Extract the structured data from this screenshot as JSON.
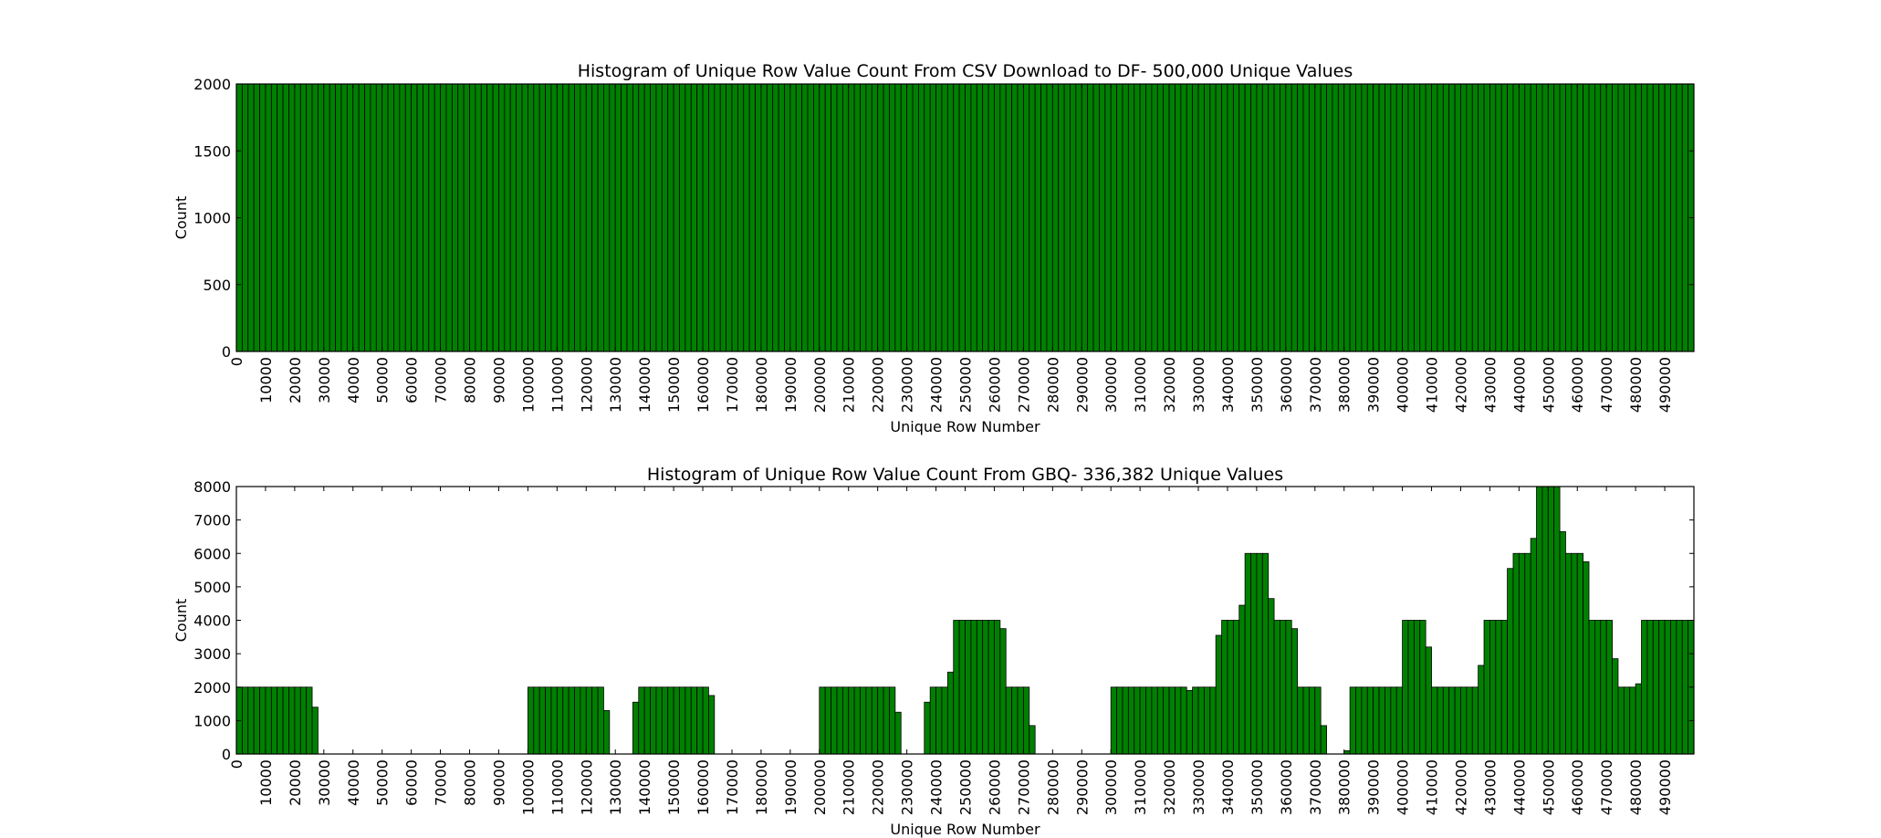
{
  "figure": {
    "background": "#ffffff"
  },
  "chart_data": [
    {
      "type": "bar",
      "title": "Histogram of Unique Row Value Count From CSV Download to DF- 500,000 Unique Values",
      "xlabel": "Unique Row Number",
      "ylabel": "Count",
      "xlim": [
        0,
        500000
      ],
      "ylim": [
        0,
        2000
      ],
      "yticks": [
        0,
        500,
        1000,
        1500,
        2000
      ],
      "xticks": [
        0,
        10000,
        20000,
        30000,
        40000,
        50000,
        60000,
        70000,
        80000,
        90000,
        100000,
        110000,
        120000,
        130000,
        140000,
        150000,
        160000,
        170000,
        180000,
        190000,
        200000,
        210000,
        220000,
        230000,
        240000,
        250000,
        260000,
        270000,
        280000,
        290000,
        300000,
        310000,
        320000,
        330000,
        340000,
        350000,
        360000,
        370000,
        380000,
        390000,
        400000,
        410000,
        420000,
        430000,
        440000,
        450000,
        460000,
        470000,
        480000,
        490000
      ],
      "bin_width": 2000,
      "bins": [
        {
          "start": 0,
          "end": 500000,
          "value": 2000
        }
      ],
      "color": "#008000",
      "edge_color": "#000000",
      "grid": false
    },
    {
      "type": "bar",
      "title": "Histogram of Unique Row Value Count From GBQ- 336,382 Unique Values",
      "xlabel": "Unique Row Number",
      "ylabel": "Count",
      "xlim": [
        0,
        500000
      ],
      "ylim": [
        0,
        8000
      ],
      "yticks": [
        0,
        1000,
        2000,
        3000,
        4000,
        5000,
        6000,
        7000,
        8000
      ],
      "xticks": [
        0,
        10000,
        20000,
        30000,
        40000,
        50000,
        60000,
        70000,
        80000,
        90000,
        100000,
        110000,
        120000,
        130000,
        140000,
        150000,
        160000,
        170000,
        180000,
        190000,
        200000,
        210000,
        220000,
        230000,
        240000,
        250000,
        260000,
        270000,
        280000,
        290000,
        300000,
        310000,
        320000,
        330000,
        340000,
        350000,
        360000,
        370000,
        380000,
        390000,
        400000,
        410000,
        420000,
        430000,
        440000,
        450000,
        460000,
        470000,
        480000,
        490000
      ],
      "bin_width": 2000,
      "bins": [
        {
          "start": 0,
          "end": 26000,
          "value": 2000
        },
        {
          "start": 26000,
          "end": 28000,
          "value": 1400
        },
        {
          "start": 28000,
          "end": 100000,
          "value": 0
        },
        {
          "start": 100000,
          "end": 126000,
          "value": 2000
        },
        {
          "start": 126000,
          "end": 128000,
          "value": 1300
        },
        {
          "start": 128000,
          "end": 136000,
          "value": 0
        },
        {
          "start": 136000,
          "end": 138000,
          "value": 1550
        },
        {
          "start": 138000,
          "end": 162000,
          "value": 2000
        },
        {
          "start": 162000,
          "end": 164000,
          "value": 1750
        },
        {
          "start": 164000,
          "end": 200000,
          "value": 0
        },
        {
          "start": 200000,
          "end": 226000,
          "value": 2000
        },
        {
          "start": 226000,
          "end": 228000,
          "value": 1250
        },
        {
          "start": 228000,
          "end": 236000,
          "value": 0
        },
        {
          "start": 236000,
          "end": 238000,
          "value": 1550
        },
        {
          "start": 238000,
          "end": 244000,
          "value": 2000
        },
        {
          "start": 244000,
          "end": 246000,
          "value": 2450
        },
        {
          "start": 246000,
          "end": 262000,
          "value": 4000
        },
        {
          "start": 262000,
          "end": 264000,
          "value": 3750
        },
        {
          "start": 264000,
          "end": 272000,
          "value": 2000
        },
        {
          "start": 272000,
          "end": 274000,
          "value": 850
        },
        {
          "start": 274000,
          "end": 300000,
          "value": 0
        },
        {
          "start": 300000,
          "end": 326000,
          "value": 2000
        },
        {
          "start": 326000,
          "end": 328000,
          "value": 1900
        },
        {
          "start": 328000,
          "end": 336000,
          "value": 2000
        },
        {
          "start": 336000,
          "end": 338000,
          "value": 3550
        },
        {
          "start": 338000,
          "end": 344000,
          "value": 4000
        },
        {
          "start": 344000,
          "end": 346000,
          "value": 4450
        },
        {
          "start": 346000,
          "end": 354000,
          "value": 6000
        },
        {
          "start": 354000,
          "end": 356000,
          "value": 4650
        },
        {
          "start": 356000,
          "end": 362000,
          "value": 4000
        },
        {
          "start": 362000,
          "end": 364000,
          "value": 3750
        },
        {
          "start": 364000,
          "end": 372000,
          "value": 2000
        },
        {
          "start": 372000,
          "end": 374000,
          "value": 850
        },
        {
          "start": 374000,
          "end": 380000,
          "value": 0
        },
        {
          "start": 380000,
          "end": 382000,
          "value": 100
        },
        {
          "start": 382000,
          "end": 400000,
          "value": 2000
        },
        {
          "start": 400000,
          "end": 408000,
          "value": 4000
        },
        {
          "start": 408000,
          "end": 410000,
          "value": 3200
        },
        {
          "start": 410000,
          "end": 426000,
          "value": 2000
        },
        {
          "start": 426000,
          "end": 428000,
          "value": 2650
        },
        {
          "start": 428000,
          "end": 436000,
          "value": 4000
        },
        {
          "start": 436000,
          "end": 438000,
          "value": 5550
        },
        {
          "start": 438000,
          "end": 444000,
          "value": 6000
        },
        {
          "start": 444000,
          "end": 446000,
          "value": 6450
        },
        {
          "start": 446000,
          "end": 454000,
          "value": 8000
        },
        {
          "start": 454000,
          "end": 456000,
          "value": 6650
        },
        {
          "start": 456000,
          "end": 462000,
          "value": 6000
        },
        {
          "start": 462000,
          "end": 464000,
          "value": 5750
        },
        {
          "start": 464000,
          "end": 472000,
          "value": 4000
        },
        {
          "start": 472000,
          "end": 474000,
          "value": 2850
        },
        {
          "start": 474000,
          "end": 480000,
          "value": 2000
        },
        {
          "start": 480000,
          "end": 482000,
          "value": 2100
        },
        {
          "start": 482000,
          "end": 500000,
          "value": 4000
        }
      ],
      "color": "#008000",
      "edge_color": "#000000",
      "grid": false
    }
  ]
}
